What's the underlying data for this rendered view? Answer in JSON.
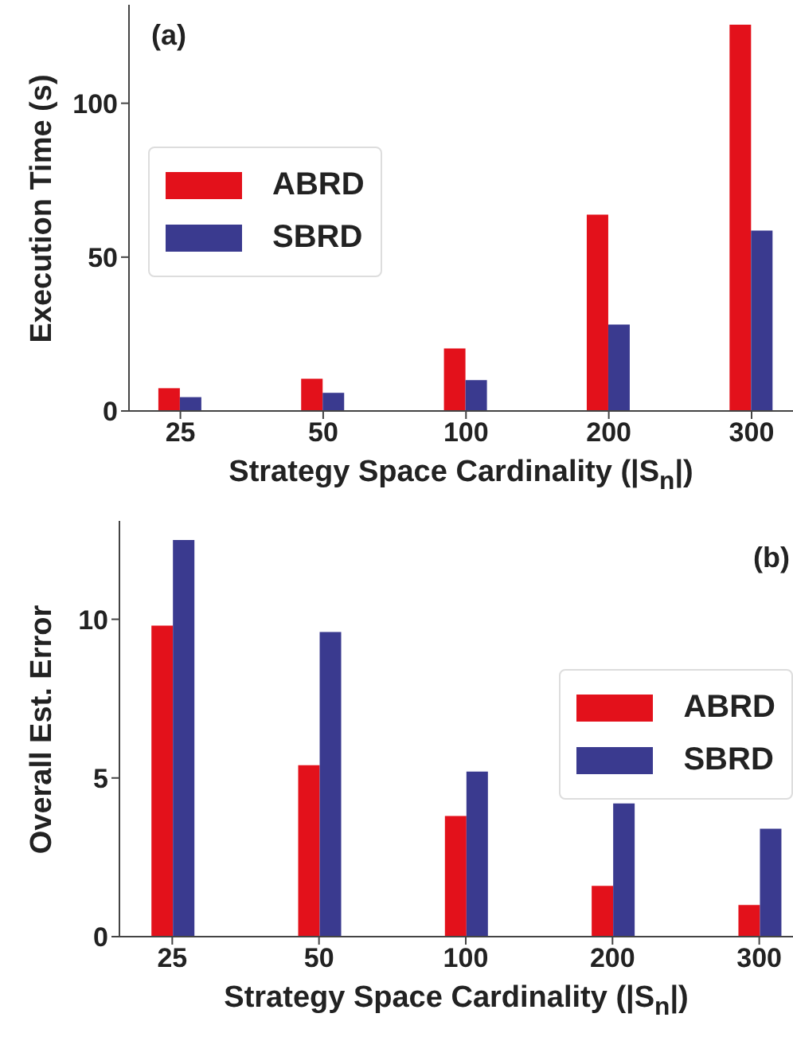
{
  "chart_data": [
    {
      "type": "bar",
      "annotations": [
        "(a)"
      ],
      "xlabel": "Strategy Space Cardinality (|S$_{n}$|)",
      "ylabel": "Execution Time (s)",
      "categories": [
        "25",
        "50",
        "100",
        "200",
        "300"
      ],
      "series": [
        {
          "name": "ABRD",
          "color": "#e3111b",
          "values": [
            7.4,
            10.5,
            20.3,
            63.8,
            125.5
          ]
        },
        {
          "name": "SBRD",
          "color": "#3a3a8f",
          "values": [
            4.5,
            5.9,
            10,
            28.1,
            58.6
          ]
        }
      ],
      "ylim": [
        0,
        132
      ],
      "yticks": [
        0,
        50,
        100
      ],
      "legend": "left"
    },
    {
      "type": "bar",
      "annotations": [
        "(b)"
      ],
      "xlabel": "Strategy Space Cardinality (|S$_{n}$|)",
      "ylabel": "Overall Est. Error",
      "categories": [
        "25",
        "50",
        "100",
        "200",
        "300"
      ],
      "series": [
        {
          "name": "ABRD",
          "color": "#e3111b",
          "values": [
            9.8,
            5.4,
            3.8,
            1.6,
            1.0
          ]
        },
        {
          "name": "SBRD",
          "color": "#3a3a8f",
          "values": [
            12.5,
            9.6,
            5.2,
            4.2,
            3.4
          ]
        }
      ],
      "ylim": [
        0,
        13.1
      ],
      "yticks": [
        0,
        5,
        10
      ],
      "legend": "right"
    }
  ]
}
